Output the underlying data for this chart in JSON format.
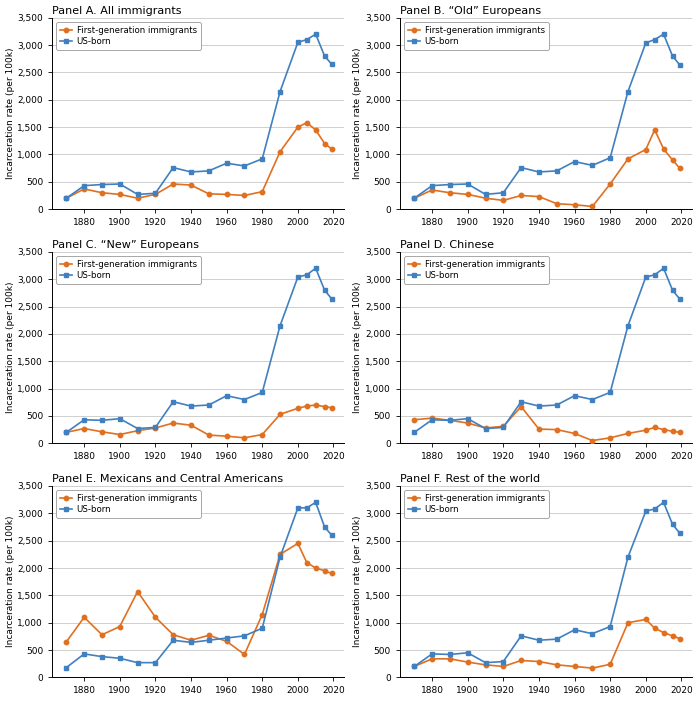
{
  "panels": [
    {
      "title": "Panel A. All immigrants",
      "immigrant": {
        "x": [
          1870,
          1880,
          1890,
          1900,
          1910,
          1920,
          1930,
          1940,
          1950,
          1960,
          1970,
          1980,
          1990,
          2000,
          2005,
          2010,
          2015,
          2019
        ],
        "y": [
          200,
          370,
          300,
          270,
          200,
          270,
          460,
          440,
          280,
          270,
          250,
          320,
          1050,
          1500,
          1580,
          1450,
          1200,
          1100
        ]
      },
      "usborn": {
        "x": [
          1870,
          1880,
          1890,
          1900,
          1910,
          1920,
          1930,
          1940,
          1950,
          1960,
          1970,
          1980,
          1990,
          2000,
          2005,
          2010,
          2015,
          2019
        ],
        "y": [
          200,
          430,
          450,
          460,
          270,
          290,
          760,
          680,
          700,
          840,
          790,
          920,
          2150,
          3050,
          3100,
          3200,
          2800,
          2650
        ]
      }
    },
    {
      "title": "Panel B. “Old” Europeans",
      "immigrant": {
        "x": [
          1870,
          1880,
          1890,
          1900,
          1910,
          1920,
          1930,
          1940,
          1950,
          1960,
          1970,
          1980,
          1990,
          2000,
          2005,
          2010,
          2015,
          2019
        ],
        "y": [
          200,
          350,
          300,
          270,
          200,
          160,
          250,
          230,
          100,
          80,
          50,
          460,
          920,
          1090,
          1450,
          1100,
          900,
          750
        ]
      },
      "usborn": {
        "x": [
          1870,
          1880,
          1890,
          1900,
          1910,
          1920,
          1930,
          1940,
          1950,
          1960,
          1970,
          1980,
          1990,
          2000,
          2005,
          2010,
          2015,
          2019
        ],
        "y": [
          200,
          430,
          450,
          460,
          270,
          300,
          760,
          680,
          700,
          870,
          800,
          940,
          2150,
          3040,
          3100,
          3200,
          2800,
          2640
        ]
      }
    },
    {
      "title": "Panel C. “New” Europeans",
      "immigrant": {
        "x": [
          1870,
          1880,
          1890,
          1900,
          1910,
          1920,
          1930,
          1940,
          1950,
          1960,
          1970,
          1980,
          1990,
          2000,
          2005,
          2010,
          2015,
          2019
        ],
        "y": [
          200,
          270,
          210,
          160,
          230,
          280,
          370,
          330,
          150,
          130,
          100,
          160,
          530,
          640,
          680,
          700,
          670,
          650
        ]
      },
      "usborn": {
        "x": [
          1870,
          1880,
          1890,
          1900,
          1910,
          1920,
          1930,
          1940,
          1950,
          1960,
          1970,
          1980,
          1990,
          2000,
          2005,
          2010,
          2015,
          2019
        ],
        "y": [
          200,
          430,
          420,
          450,
          270,
          290,
          760,
          680,
          700,
          870,
          800,
          930,
          2150,
          3040,
          3080,
          3200,
          2800,
          2640
        ]
      }
    },
    {
      "title": "Panel D. Chinese",
      "immigrant": {
        "x": [
          1870,
          1880,
          1890,
          1900,
          1910,
          1920,
          1930,
          1940,
          1950,
          1960,
          1970,
          1980,
          1990,
          2000,
          2005,
          2010,
          2015,
          2019
        ],
        "y": [
          430,
          460,
          420,
          370,
          280,
          310,
          670,
          260,
          250,
          180,
          50,
          100,
          180,
          240,
          290,
          250,
          220,
          200
        ]
      },
      "usborn": {
        "x": [
          1870,
          1880,
          1890,
          1900,
          1910,
          1920,
          1930,
          1940,
          1950,
          1960,
          1970,
          1980,
          1990,
          2000,
          2005,
          2010,
          2015,
          2019
        ],
        "y": [
          200,
          430,
          420,
          450,
          270,
          290,
          760,
          680,
          700,
          870,
          800,
          930,
          2150,
          3040,
          3080,
          3200,
          2800,
          2640
        ]
      }
    },
    {
      "title": "Panel E. Mexicans and Central Americans",
      "immigrant": {
        "x": [
          1870,
          1880,
          1890,
          1900,
          1910,
          1920,
          1930,
          1940,
          1950,
          1960,
          1970,
          1980,
          1990,
          2000,
          2005,
          2010,
          2015,
          2019
        ],
        "y": [
          650,
          1100,
          780,
          930,
          1570,
          1100,
          780,
          680,
          770,
          660,
          420,
          1150,
          2250,
          2450,
          2100,
          2000,
          1950,
          1900
        ]
      },
      "usborn": {
        "x": [
          1870,
          1880,
          1890,
          1900,
          1910,
          1920,
          1930,
          1940,
          1950,
          1960,
          1970,
          1980,
          1990,
          2000,
          2005,
          2010,
          2015,
          2019
        ],
        "y": [
          180,
          430,
          380,
          350,
          270,
          270,
          680,
          640,
          680,
          720,
          760,
          900,
          2200,
          3100,
          3100,
          3200,
          2750,
          2600
        ]
      }
    },
    {
      "title": "Panel F. Rest of the world",
      "immigrant": {
        "x": [
          1870,
          1880,
          1890,
          1900,
          1910,
          1920,
          1930,
          1940,
          1950,
          1960,
          1970,
          1980,
          1990,
          2000,
          2005,
          2010,
          2015,
          2019
        ],
        "y": [
          200,
          340,
          340,
          280,
          230,
          200,
          310,
          290,
          230,
          200,
          170,
          240,
          1000,
          1060,
          900,
          820,
          760,
          710
        ]
      },
      "usborn": {
        "x": [
          1870,
          1880,
          1890,
          1900,
          1910,
          1920,
          1930,
          1940,
          1950,
          1960,
          1970,
          1980,
          1990,
          2000,
          2005,
          2010,
          2015,
          2019
        ],
        "y": [
          200,
          430,
          420,
          450,
          270,
          290,
          760,
          680,
          700,
          870,
          800,
          930,
          2200,
          3040,
          3080,
          3200,
          2800,
          2640
        ]
      }
    }
  ],
  "orange_color": "#E07020",
  "blue_color": "#4080C0",
  "ylim": [
    0,
    3500
  ],
  "yticks": [
    0,
    500,
    1000,
    1500,
    2000,
    2500,
    3000,
    3500
  ],
  "xlabel_ticks": [
    1880,
    1900,
    1920,
    1940,
    1960,
    1980,
    2000,
    2020
  ],
  "ylabel": "Incarceration rate (per 100k)",
  "legend_immigrant": "First-generation immigrants",
  "legend_usborn": "US-born",
  "title_fontsize": 8.0,
  "tick_fontsize": 6.5,
  "ylabel_fontsize": 6.5,
  "legend_fontsize": 6.2
}
